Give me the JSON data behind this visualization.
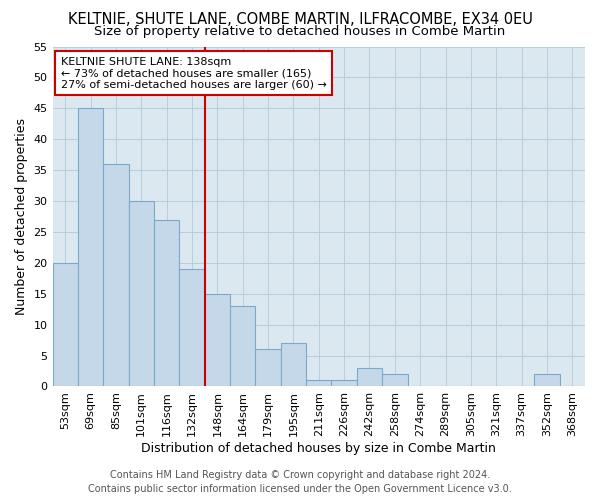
{
  "title": "KELTNIE, SHUTE LANE, COMBE MARTIN, ILFRACOMBE, EX34 0EU",
  "subtitle": "Size of property relative to detached houses in Combe Martin",
  "xlabel": "Distribution of detached houses by size in Combe Martin",
  "ylabel": "Number of detached properties",
  "footer_line1": "Contains HM Land Registry data © Crown copyright and database right 2024.",
  "footer_line2": "Contains public sector information licensed under the Open Government Licence v3.0.",
  "categories": [
    "53sqm",
    "69sqm",
    "85sqm",
    "101sqm",
    "116sqm",
    "132sqm",
    "148sqm",
    "164sqm",
    "179sqm",
    "195sqm",
    "211sqm",
    "226sqm",
    "242sqm",
    "258sqm",
    "274sqm",
    "289sqm",
    "305sqm",
    "321sqm",
    "337sqm",
    "352sqm",
    "368sqm"
  ],
  "values": [
    20,
    45,
    36,
    30,
    27,
    19,
    15,
    13,
    6,
    7,
    1,
    1,
    3,
    2,
    0,
    0,
    0,
    0,
    0,
    2,
    0
  ],
  "bar_color": "#c5d8ea",
  "bar_edge_color": "#7aaac8",
  "vline_x": 6.0,
  "vline_color": "#cc0000",
  "annotation_text": "KELTNIE SHUTE LANE: 138sqm\n← 73% of detached houses are smaller (165)\n27% of semi-detached houses are larger (60) →",
  "annotation_box_color": "white",
  "annotation_box_edge_color": "#cc0000",
  "ylim": [
    0,
    55
  ],
  "yticks": [
    0,
    5,
    10,
    15,
    20,
    25,
    30,
    35,
    40,
    45,
    50,
    55
  ],
  "bg_color": "#ffffff",
  "plot_bg_color": "#dce8f0",
  "grid_color": "#b8cedd",
  "title_fontsize": 10.5,
  "subtitle_fontsize": 9.5,
  "xlabel_fontsize": 9,
  "ylabel_fontsize": 9,
  "tick_fontsize": 8,
  "annotation_fontsize": 8,
  "footer_fontsize": 7
}
